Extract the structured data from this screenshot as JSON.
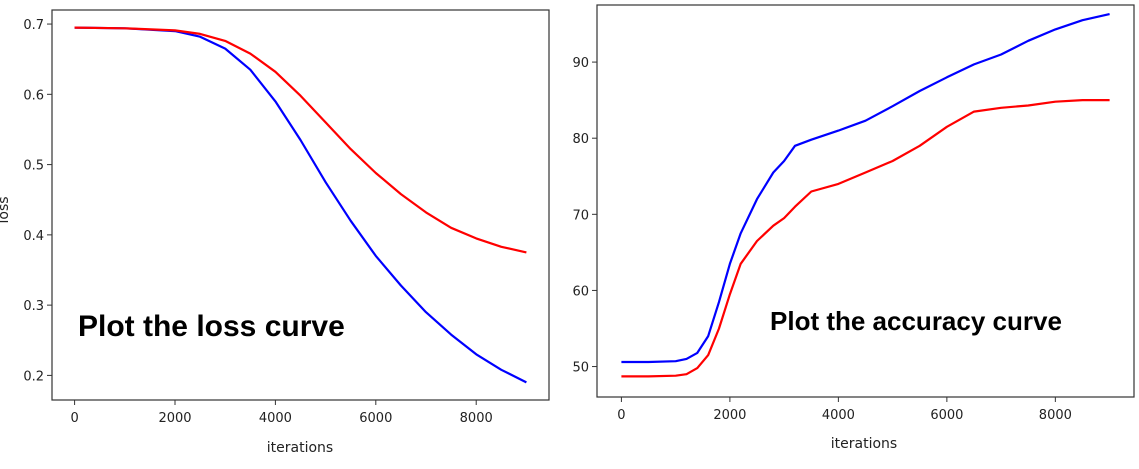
{
  "chart_data": [
    {
      "type": "line",
      "title": "",
      "xlabel": "iterations",
      "ylabel": "loss",
      "xlim": [
        -450,
        9450
      ],
      "ylim": [
        0.165,
        0.72
      ],
      "xticks": [
        0,
        2000,
        4000,
        6000,
        8000
      ],
      "xtick_labels": [
        "0",
        "2000",
        "4000",
        "6000",
        "8000"
      ],
      "yticks": [
        0.2,
        0.3,
        0.4,
        0.5,
        0.6,
        0.7
      ],
      "ytick_labels": [
        "0.2",
        "0.3",
        "0.4",
        "0.5",
        "0.6",
        "0.7"
      ],
      "grid": false,
      "annotation": "Plot the loss curve",
      "series": [
        {
          "color": "#0000ff",
          "x": [
            0,
            1000,
            2000,
            2500,
            3000,
            3500,
            4000,
            4500,
            5000,
            5500,
            6000,
            6500,
            7000,
            7500,
            8000,
            8500,
            9000
          ],
          "y": [
            0.695,
            0.694,
            0.69,
            0.682,
            0.665,
            0.635,
            0.59,
            0.535,
            0.475,
            0.42,
            0.37,
            0.328,
            0.29,
            0.258,
            0.23,
            0.208,
            0.19
          ]
        },
        {
          "color": "#ff0000",
          "x": [
            0,
            1000,
            2000,
            2500,
            3000,
            3500,
            4000,
            4500,
            5000,
            5500,
            6000,
            6500,
            7000,
            7500,
            8000,
            8500,
            9000
          ],
          "y": [
            0.695,
            0.694,
            0.691,
            0.686,
            0.676,
            0.658,
            0.632,
            0.598,
            0.56,
            0.522,
            0.488,
            0.458,
            0.432,
            0.41,
            0.395,
            0.383,
            0.375
          ]
        }
      ]
    },
    {
      "type": "line",
      "title": "",
      "xlabel": "iterations",
      "ylabel": "",
      "xlim": [
        -450,
        9450
      ],
      "ylim": [
        46,
        97.5
      ],
      "xticks": [
        0,
        2000,
        4000,
        6000,
        8000
      ],
      "xtick_labels": [
        "0",
        "2000",
        "4000",
        "6000",
        "8000"
      ],
      "yticks": [
        50,
        60,
        70,
        80,
        90
      ],
      "ytick_labels": [
        "50",
        "60",
        "70",
        "80",
        "90"
      ],
      "grid": false,
      "annotation": "Plot the accuracy curve",
      "series": [
        {
          "color": "#0000ff",
          "x": [
            0,
            500,
            1000,
            1200,
            1400,
            1600,
            1800,
            2000,
            2200,
            2500,
            2800,
            3000,
            3200,
            3500,
            4000,
            4500,
            5000,
            5500,
            6000,
            6500,
            7000,
            7500,
            8000,
            8500,
            9000
          ],
          "y": [
            50.6,
            50.6,
            50.7,
            51.0,
            51.8,
            54.0,
            58.5,
            63.5,
            67.5,
            72.0,
            75.5,
            77.0,
            79.0,
            79.8,
            81.0,
            82.3,
            84.2,
            86.2,
            88.0,
            89.7,
            91.0,
            92.8,
            94.3,
            95.5,
            96.3
          ]
        },
        {
          "color": "#ff0000",
          "x": [
            0,
            500,
            1000,
            1200,
            1400,
            1600,
            1800,
            2000,
            2200,
            2500,
            2800,
            3000,
            3200,
            3500,
            4000,
            4500,
            5000,
            5500,
            6000,
            6500,
            7000,
            7500,
            8000,
            8500,
            9000
          ],
          "y": [
            48.7,
            48.7,
            48.8,
            49.0,
            49.8,
            51.5,
            55.0,
            59.5,
            63.5,
            66.5,
            68.5,
            69.5,
            71.0,
            73.0,
            74.0,
            75.5,
            77.0,
            79.0,
            81.5,
            83.5,
            84.0,
            84.3,
            84.8,
            85.0,
            85.0
          ]
        }
      ]
    }
  ]
}
